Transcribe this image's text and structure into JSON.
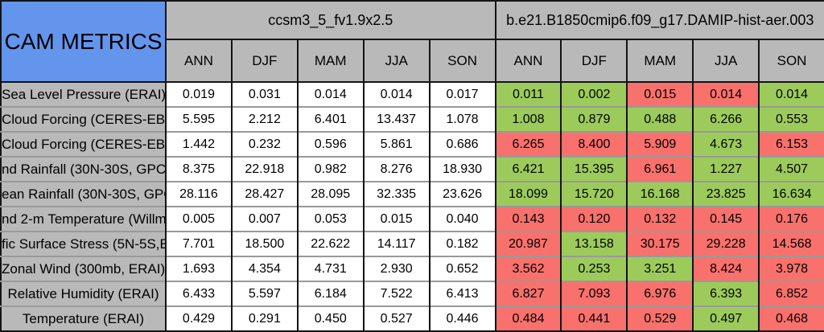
{
  "title": "CAM METRICS",
  "colors": {
    "header_blue": "#6495ed",
    "header_gray": "#b9b9b9",
    "better_green": "#9ccb5c",
    "worse_red": "#f8716c",
    "cell_white": "#ffffff",
    "border_dark": "#141414"
  },
  "chart_data": {
    "type": "table",
    "title": "CAM METRICS",
    "column_groups": [
      {
        "name": "ccsm3_5_fv1.9x2.5",
        "seasons": [
          "ANN",
          "DJF",
          "MAM",
          "JJA",
          "SON"
        ]
      },
      {
        "name": "b.e21.B1850cmip6.f09_g17.DAMIP-hist-aer.003",
        "seasons": [
          "ANN",
          "DJF",
          "MAM",
          "JJA",
          "SON"
        ]
      }
    ],
    "rows": [
      {
        "label": "Sea Level Pressure (ERAI)",
        "baseline": [
          "0.019",
          "0.031",
          "0.014",
          "0.014",
          "0.017"
        ],
        "test": [
          {
            "value": "0.011",
            "status": "better"
          },
          {
            "value": "0.002",
            "status": "better"
          },
          {
            "value": "0.015",
            "status": "worse"
          },
          {
            "value": "0.014",
            "status": "worse"
          },
          {
            "value": "0.014",
            "status": "better"
          }
        ]
      },
      {
        "label": "Cloud Forcing (CERES-EB",
        "baseline": [
          "5.595",
          "2.212",
          "6.401",
          "13.437",
          "1.078"
        ],
        "test": [
          {
            "value": "1.008",
            "status": "better"
          },
          {
            "value": "0.879",
            "status": "better"
          },
          {
            "value": "0.488",
            "status": "better"
          },
          {
            "value": "6.266",
            "status": "better"
          },
          {
            "value": "0.553",
            "status": "better"
          }
        ]
      },
      {
        "label": "Cloud Forcing (CERES-EB",
        "baseline": [
          "1.442",
          "0.232",
          "0.596",
          "5.861",
          "0.686"
        ],
        "test": [
          {
            "value": "6.265",
            "status": "worse"
          },
          {
            "value": "8.400",
            "status": "worse"
          },
          {
            "value": "5.909",
            "status": "worse"
          },
          {
            "value": "4.673",
            "status": "better"
          },
          {
            "value": "6.153",
            "status": "worse"
          }
        ]
      },
      {
        "label": "nd Rainfall (30N-30S, GPC",
        "baseline": [
          "8.375",
          "22.918",
          "0.982",
          "8.276",
          "18.930"
        ],
        "test": [
          {
            "value": "6.421",
            "status": "better"
          },
          {
            "value": "15.395",
            "status": "better"
          },
          {
            "value": "6.961",
            "status": "worse"
          },
          {
            "value": "1.227",
            "status": "better"
          },
          {
            "value": "4.507",
            "status": "better"
          }
        ]
      },
      {
        "label": "ean Rainfall (30N-30S, GPC",
        "baseline": [
          "28.116",
          "28.427",
          "28.095",
          "32.335",
          "23.626"
        ],
        "test": [
          {
            "value": "18.099",
            "status": "better"
          },
          {
            "value": "15.720",
            "status": "better"
          },
          {
            "value": "16.168",
            "status": "better"
          },
          {
            "value": "23.825",
            "status": "better"
          },
          {
            "value": "16.634",
            "status": "better"
          }
        ]
      },
      {
        "label": "nd 2-m Temperature (Willmo",
        "baseline": [
          "0.005",
          "0.007",
          "0.053",
          "0.015",
          "0.040"
        ],
        "test": [
          {
            "value": "0.143",
            "status": "worse"
          },
          {
            "value": "0.120",
            "status": "worse"
          },
          {
            "value": "0.132",
            "status": "worse"
          },
          {
            "value": "0.145",
            "status": "worse"
          },
          {
            "value": "0.176",
            "status": "worse"
          }
        ]
      },
      {
        "label": "fic Surface Stress (5N-5S,E",
        "baseline": [
          "7.701",
          "18.500",
          "22.622",
          "14.117",
          "0.182"
        ],
        "test": [
          {
            "value": "20.987",
            "status": "worse"
          },
          {
            "value": "13.158",
            "status": "better"
          },
          {
            "value": "30.175",
            "status": "worse"
          },
          {
            "value": "29.228",
            "status": "worse"
          },
          {
            "value": "14.568",
            "status": "worse"
          }
        ]
      },
      {
        "label": "Zonal Wind (300mb, ERAI)",
        "baseline": [
          "1.693",
          "4.354",
          "4.731",
          "2.930",
          "0.652"
        ],
        "test": [
          {
            "value": "3.562",
            "status": "worse"
          },
          {
            "value": "0.253",
            "status": "better"
          },
          {
            "value": "3.251",
            "status": "better"
          },
          {
            "value": "8.424",
            "status": "worse"
          },
          {
            "value": "3.978",
            "status": "worse"
          }
        ]
      },
      {
        "label": "Relative Humidity (ERAI)",
        "baseline": [
          "6.433",
          "5.597",
          "6.184",
          "7.522",
          "6.413"
        ],
        "test": [
          {
            "value": "6.827",
            "status": "worse"
          },
          {
            "value": "7.093",
            "status": "worse"
          },
          {
            "value": "6.976",
            "status": "worse"
          },
          {
            "value": "6.393",
            "status": "better"
          },
          {
            "value": "6.852",
            "status": "worse"
          }
        ]
      },
      {
        "label": "Temperature (ERAI)",
        "baseline": [
          "0.429",
          "0.291",
          "0.450",
          "0.527",
          "0.446"
        ],
        "test": [
          {
            "value": "0.484",
            "status": "worse"
          },
          {
            "value": "0.441",
            "status": "worse"
          },
          {
            "value": "0.529",
            "status": "worse"
          },
          {
            "value": "0.497",
            "status": "better"
          },
          {
            "value": "0.468",
            "status": "worse"
          }
        ]
      }
    ]
  }
}
